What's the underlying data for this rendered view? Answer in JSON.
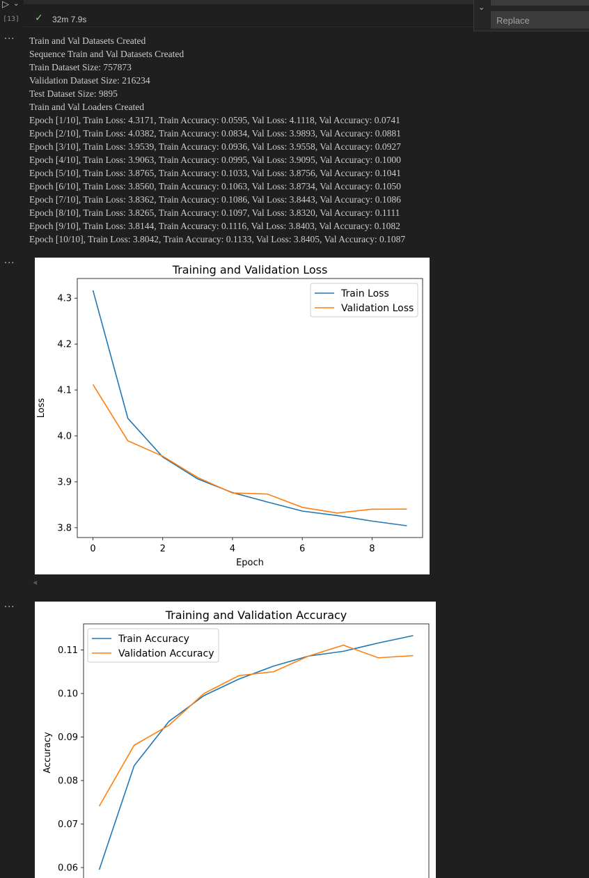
{
  "cell": {
    "execution_count": "[13]",
    "duration": "32m 7.9s"
  },
  "find_widget": {
    "replace_placeholder": "Replace"
  },
  "output": {
    "lines": [
      "Train and Val Datasets Created",
      "Sequence Train and Val Datasets Created",
      "Train Dataset Size: 757873",
      "Validation Dataset Size: 216234",
      "Test Dataset Size: 9895",
      "Train and Val Loaders Created",
      "Epoch [1/10], Train Loss: 4.3171, Train Accuracy: 0.0595, Val Loss: 4.1118, Val Accuracy: 0.0741",
      "Epoch [2/10], Train Loss: 4.0382, Train Accuracy: 0.0834, Val Loss: 3.9893, Val Accuracy: 0.0881",
      "Epoch [3/10], Train Loss: 3.9539, Train Accuracy: 0.0936, Val Loss: 3.9558, Val Accuracy: 0.0927",
      "Epoch [4/10], Train Loss: 3.9063, Train Accuracy: 0.0995, Val Loss: 3.9095, Val Accuracy: 0.1000",
      "Epoch [5/10], Train Loss: 3.8765, Train Accuracy: 0.1033, Val Loss: 3.8756, Val Accuracy: 0.1041",
      "Epoch [6/10], Train Loss: 3.8560, Train Accuracy: 0.1063, Val Loss: 3.8734, Val Accuracy: 0.1050",
      "Epoch [7/10], Train Loss: 3.8362, Train Accuracy: 0.1086, Val Loss: 3.8443, Val Accuracy: 0.1086",
      "Epoch [8/10], Train Loss: 3.8265, Train Accuracy: 0.1097, Val Loss: 3.8320, Val Accuracy: 0.1111",
      "Epoch [9/10], Train Loss: 3.8144, Train Accuracy: 0.1116, Val Loss: 3.8403, Val Accuracy: 0.1082",
      "Epoch [10/10], Train Loss: 3.8042, Train Accuracy: 0.1133, Val Loss: 3.8405, Val Accuracy: 0.1087"
    ]
  },
  "icons": {
    "run": "run-icon",
    "run_menu": "chevron-down-icon",
    "success": "check-icon",
    "more": "ellipsis-icon"
  },
  "colors": {
    "train": "#1f77b4",
    "validation": "#ff7f0e"
  },
  "chart_data": [
    {
      "type": "line",
      "title": "Training and Validation Loss",
      "xlabel": "Epoch",
      "ylabel": "Loss",
      "x": [
        0,
        1,
        2,
        3,
        4,
        5,
        6,
        7,
        8,
        9
      ],
      "xticks": [
        "0",
        "2",
        "4",
        "6",
        "8"
      ],
      "yticks": [
        "3.8",
        "3.9",
        "4.0",
        "4.1",
        "4.2",
        "4.3"
      ],
      "xlim": [
        -0.45,
        9.45
      ],
      "ylim": [
        3.7786,
        4.3428
      ],
      "legend": "top-right",
      "grid": false,
      "series": [
        {
          "name": "Train Loss",
          "values": [
            4.3171,
            4.0382,
            3.9539,
            3.9063,
            3.8765,
            3.856,
            3.8362,
            3.8265,
            3.8144,
            3.8042
          ]
        },
        {
          "name": "Validation Loss",
          "values": [
            4.1118,
            3.9893,
            3.9558,
            3.9095,
            3.8756,
            3.8734,
            3.8443,
            3.832,
            3.8403,
            3.8405
          ]
        }
      ]
    },
    {
      "type": "line",
      "title": "Training and Validation Accuracy",
      "xlabel": "",
      "ylabel": "Accuracy",
      "x": [
        0,
        1,
        2,
        3,
        4,
        5,
        6,
        7,
        8,
        9
      ],
      "yticks": [
        "0.06",
        "0.07",
        "0.08",
        "0.09",
        "0.10",
        "0.11"
      ],
      "xlim": [
        -0.45,
        9.45
      ],
      "ylim": [
        0.0568,
        0.116
      ],
      "legend": "top-left",
      "grid": false,
      "series": [
        {
          "name": "Train Accuracy",
          "values": [
            0.0595,
            0.0834,
            0.0936,
            0.0995,
            0.1033,
            0.1063,
            0.1086,
            0.1097,
            0.1116,
            0.1133
          ]
        },
        {
          "name": "Validation Accuracy",
          "values": [
            0.0741,
            0.0881,
            0.0927,
            0.1,
            0.1041,
            0.105,
            0.1086,
            0.1111,
            0.1082,
            0.1087
          ]
        }
      ]
    }
  ]
}
